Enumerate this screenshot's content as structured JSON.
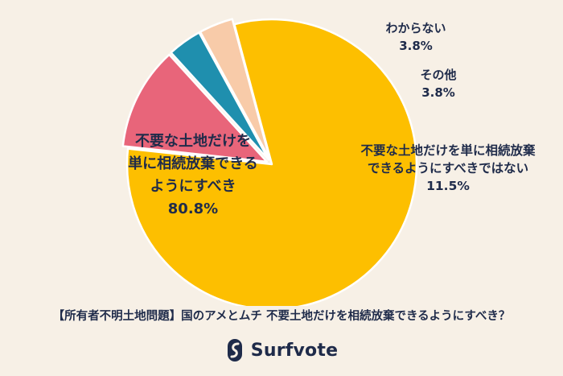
{
  "chart_data": {
    "type": "pie",
    "title": "",
    "slices": [
      {
        "label": "不要な土地だけを単に相続放棄できるようにすべき",
        "lines": [
          "不要な土地だけを",
          "単に相続放棄できる",
          "ようにすべき"
        ],
        "value": 80.8,
        "value_label": "80.8%",
        "color": "#fdbf00"
      },
      {
        "label": "不要な土地だけを単に相続放棄できるようにすべきではない",
        "lines": [
          "不要な土地だけを単に相続放棄",
          "できるようにすべきではない"
        ],
        "value": 11.5,
        "value_label": "11.5%",
        "color": "#e8657a"
      },
      {
        "label": "その他",
        "lines": [
          "その他"
        ],
        "value": 3.8,
        "value_label": "3.8%",
        "color": "#1f8fae"
      },
      {
        "label": "わからない",
        "lines": [
          "わからない"
        ],
        "value": 3.8,
        "value_label": "3.8%",
        "color": "#f8cba9"
      }
    ]
  },
  "caption": "【所有者不明土地問題】国のアメとムチ 不要土地だけを相続放棄できるようにすべき？",
  "brand": {
    "name": "Surfvote",
    "color": "#1f2b4a"
  }
}
